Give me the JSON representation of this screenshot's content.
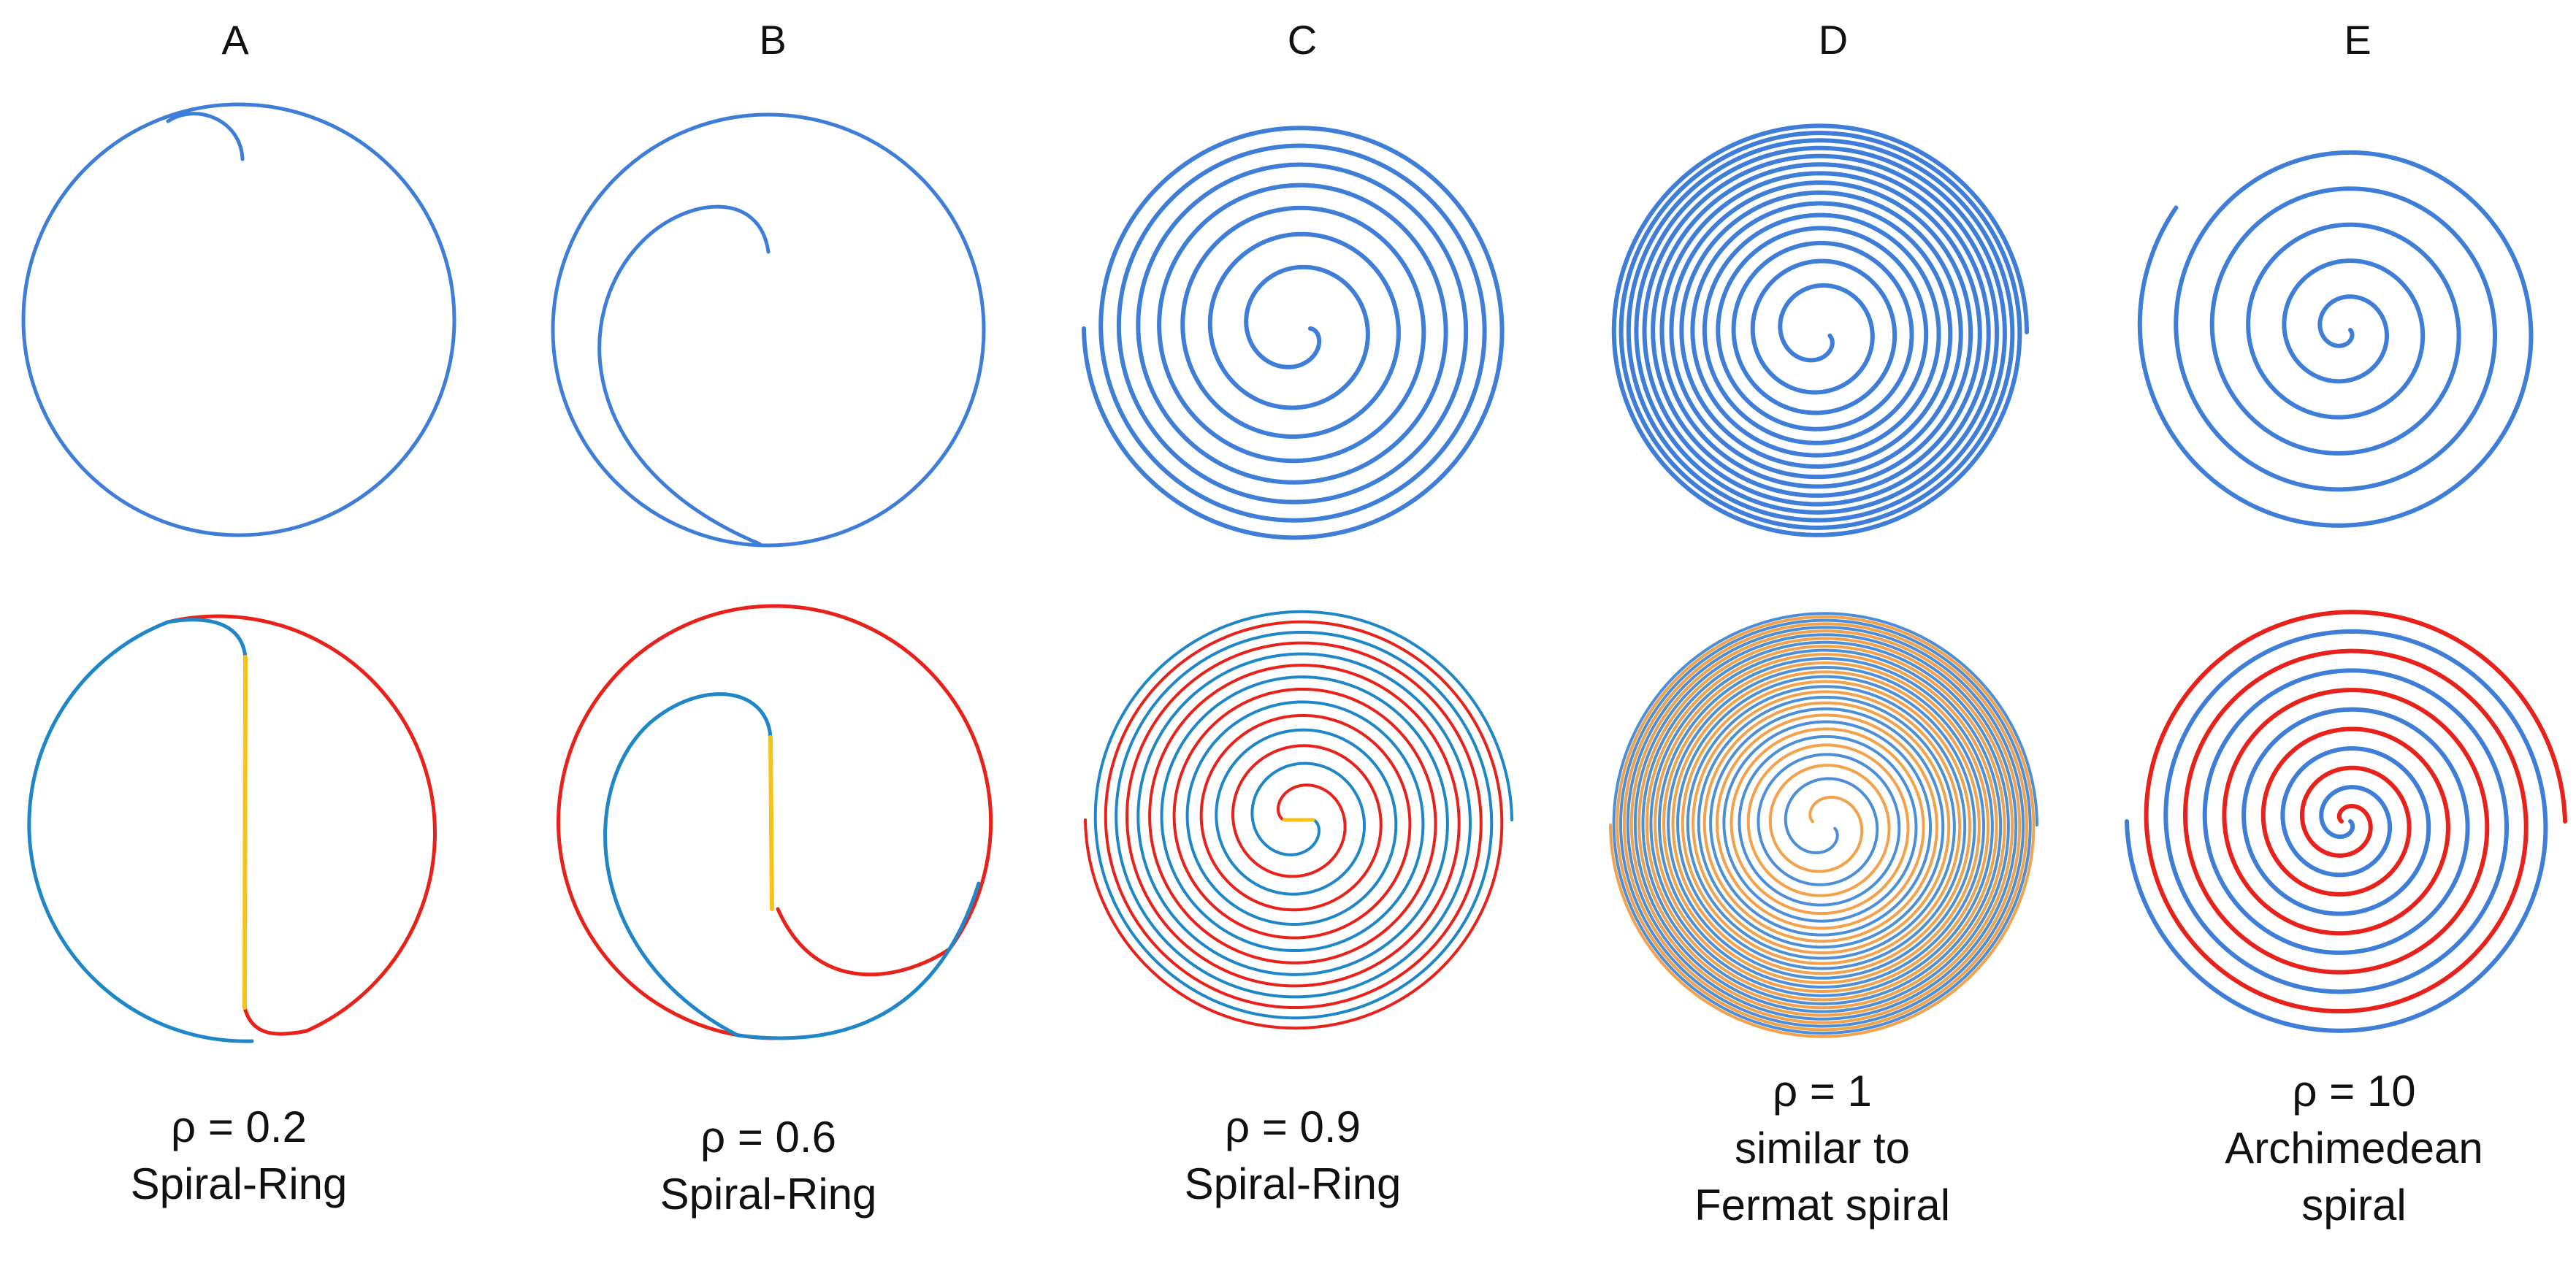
{
  "colors": {
    "top_blue": "#3f7ed8",
    "blue": "#1f86c8",
    "red": "#e8211b",
    "yellow": "#f7c21a",
    "orange": "#f4a14b",
    "light_blue": "#4d8fd6"
  },
  "panels": [
    {
      "letter": "A",
      "rho": "ρ = 0.2",
      "caption": [
        "Spiral-Ring"
      ]
    },
    {
      "letter": "B",
      "rho": "ρ = 0.6",
      "caption": [
        "Spiral-Ring"
      ]
    },
    {
      "letter": "C",
      "rho": "ρ = 0.9",
      "caption": [
        "Spiral-Ring"
      ]
    },
    {
      "letter": "D",
      "rho": "ρ = 1",
      "caption": [
        "similar to",
        "Fermat spiral"
      ]
    },
    {
      "letter": "E",
      "rho": "ρ = 10",
      "caption": [
        "Archimedean",
        "spiral"
      ]
    }
  ]
}
